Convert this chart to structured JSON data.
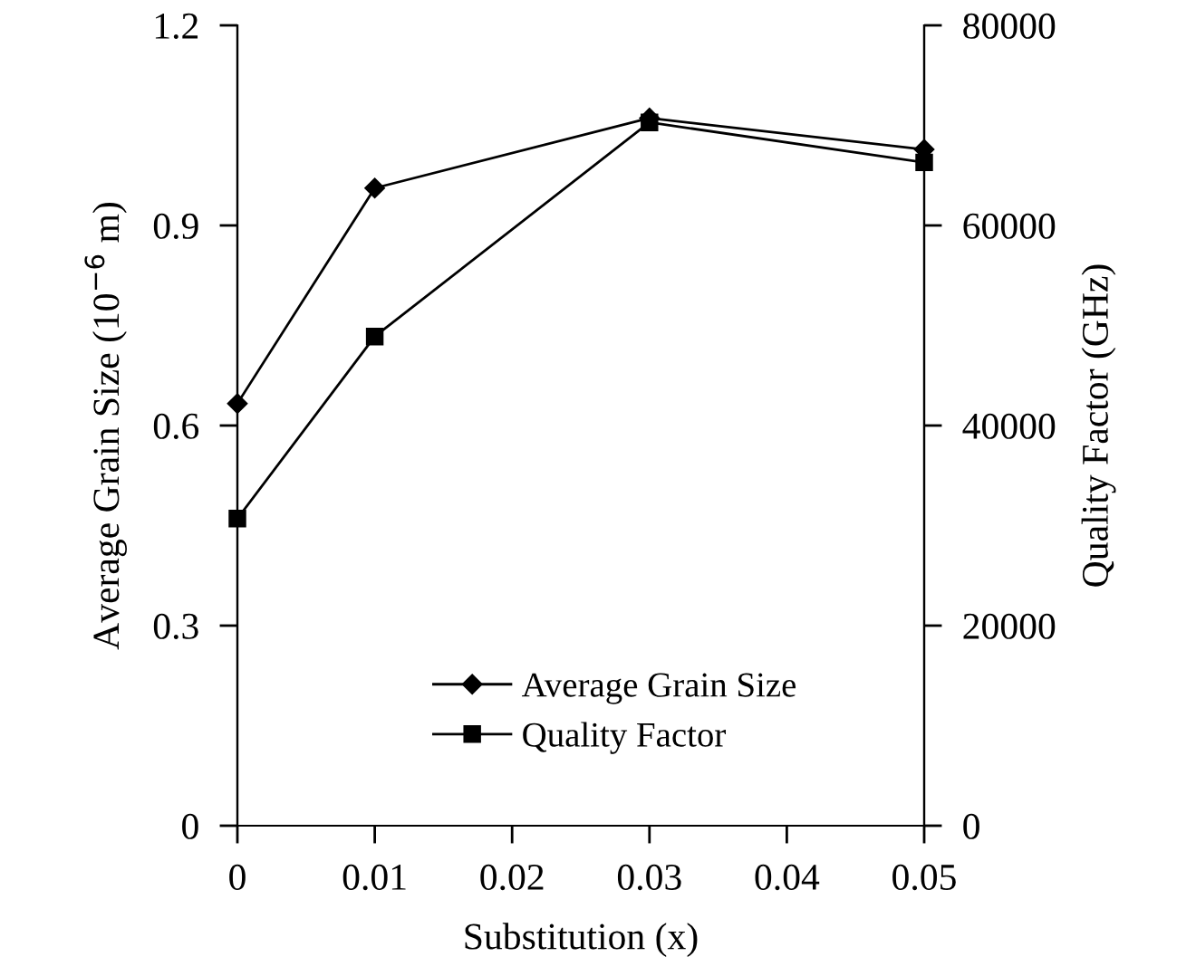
{
  "chart_data": {
    "type": "line",
    "xlabel": "Substitution (x)",
    "ylabel": "Average Grain Size (10$^{−6}$ m)",
    "y2label": "Quality Factor (GHz)",
    "x": [
      0,
      0.01,
      0.03,
      0.05
    ],
    "series": [
      {
        "name": "Average Grain Size",
        "color": "#000000",
        "marker": "diamond",
        "values": [
          0.633,
          0.956,
          1.061,
          1.014
        ]
      },
      {
        "name": "Quality Factor",
        "color": "#000000",
        "marker": "square",
        "axis": "y2",
        "values": [
          30700,
          48900,
          70300,
          66300
        ]
      }
    ],
    "xlim": [
      0,
      0.05
    ],
    "xticks": [
      {
        "value": 0,
        "label": "0"
      },
      0.01,
      0.02,
      0.03,
      0.04,
      0.05
    ],
    "ylim": [
      0,
      1.2
    ],
    "yticks": [
      {
        "value": 0,
        "label": "0"
      },
      0.3,
      0.6,
      0.9,
      1.2
    ],
    "y2lim": [
      0,
      80000
    ],
    "y2ticks": [
      0,
      20000,
      40000,
      60000,
      80000
    ],
    "grid": false,
    "legend": "bottom",
    "line_style": "solid"
  }
}
